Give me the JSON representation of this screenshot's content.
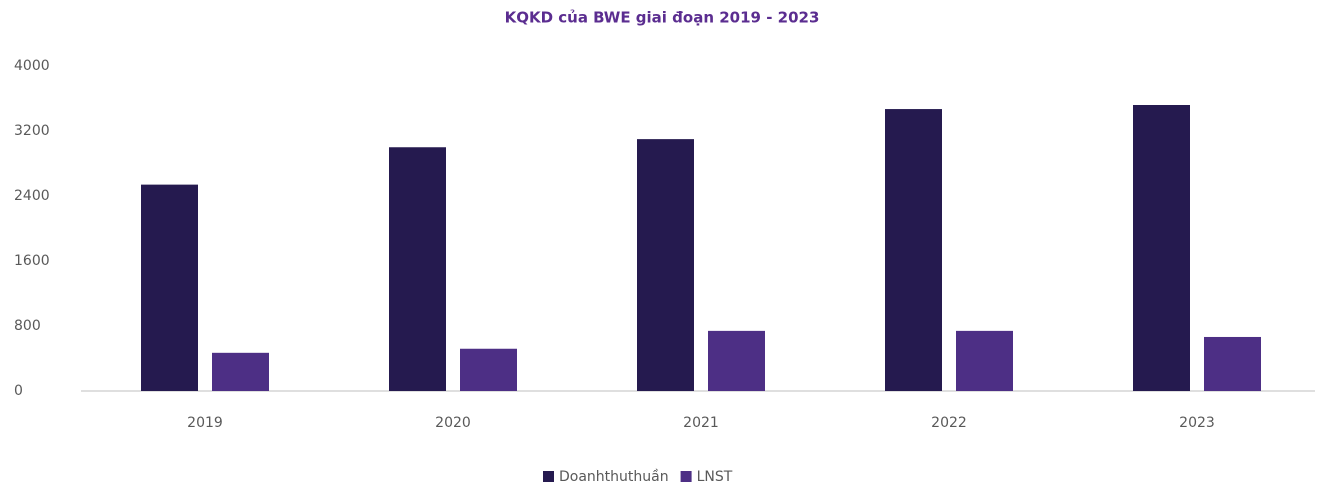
{
  "chart_data": {
    "type": "bar",
    "title": "KQKD của BWE giai đoạn  2019 - 2023",
    "categories": [
      "2019",
      "2020",
      "2021",
      "2022",
      "2023"
    ],
    "series": [
      {
        "name": "Doanhthuthuần",
        "color": "#251a4f",
        "values": [
          2540,
          3000,
          3100,
          3470,
          3520
        ]
      },
      {
        "name": "LNST",
        "color": "#4d2f85",
        "values": [
          470,
          520,
          740,
          740,
          665
        ]
      }
    ],
    "ylim": [
      0,
      4000
    ],
    "yticks": [
      0,
      800,
      1600,
      2400,
      3200,
      4000
    ],
    "grid": false,
    "legend": "bottom"
  }
}
